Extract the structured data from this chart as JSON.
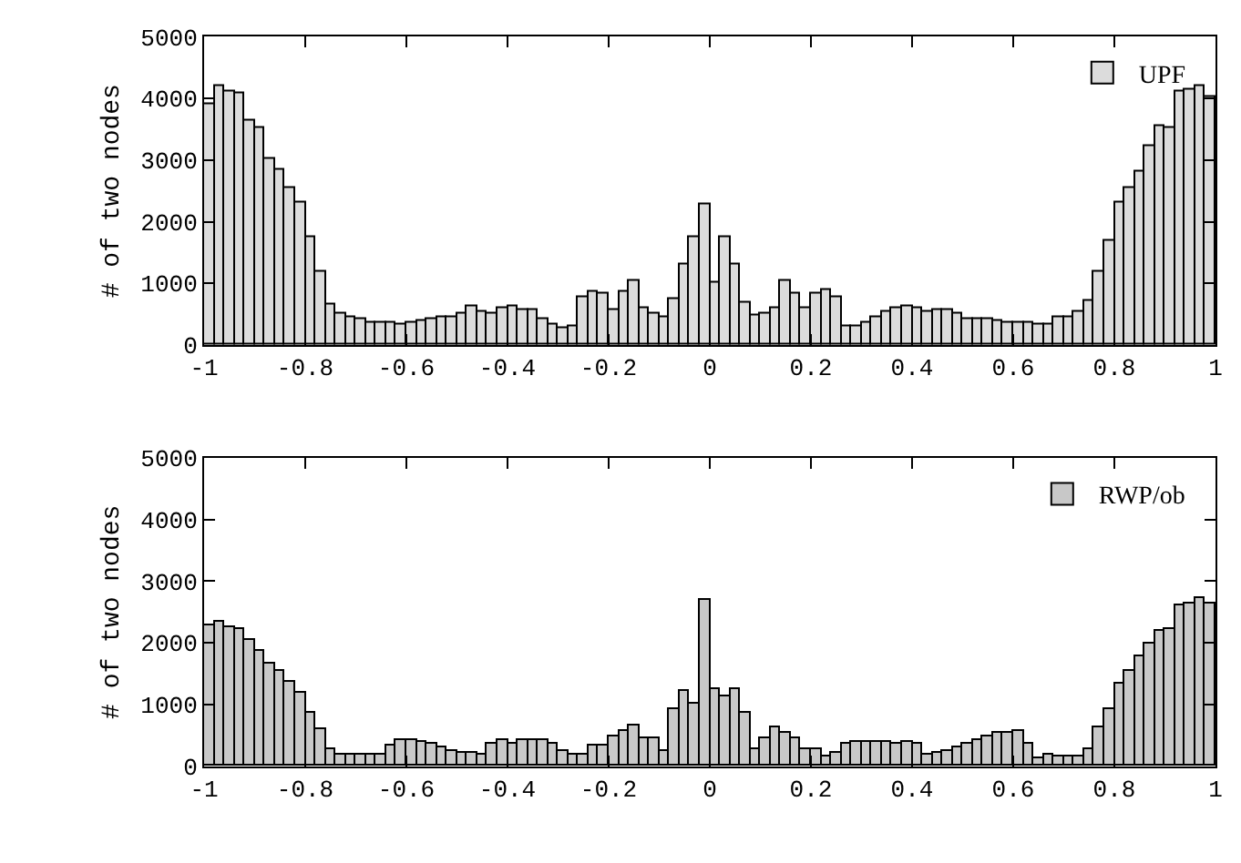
{
  "chart_data": [
    {
      "type": "histogram",
      "ylabel": "# of two nodes",
      "legend": "top right",
      "bins": [
        -1,
        -0.98,
        -0.96,
        -0.94,
        -0.92,
        -0.9,
        -0.88,
        -0.86,
        -0.84,
        -0.82,
        -0.8,
        -0.78,
        -0.76,
        -0.74,
        -0.72,
        -0.7,
        -0.68,
        -0.66,
        -0.64,
        -0.62,
        -0.6,
        -0.58,
        -0.56,
        -0.54,
        -0.52,
        -0.5,
        -0.48,
        -0.46,
        -0.44,
        -0.42,
        -0.4,
        -0.38,
        -0.36,
        -0.34,
        -0.32,
        -0.3,
        -0.28,
        -0.26,
        -0.24,
        -0.22,
        -0.2,
        -0.18,
        -0.16,
        -0.14,
        -0.12,
        -0.1,
        -0.08,
        -0.06,
        -0.04,
        -0.02,
        0,
        0.02,
        0.04,
        0.06,
        0.08,
        0.1,
        0.12,
        0.14,
        0.16,
        0.18,
        0.2,
        0.22,
        0.24,
        0.26,
        0.28,
        0.3,
        0.32,
        0.34,
        0.36,
        0.38,
        0.4,
        0.42,
        0.44,
        0.46,
        0.48,
        0.5,
        0.52,
        0.54,
        0.56,
        0.58,
        0.6,
        0.62,
        0.64,
        0.66,
        0.68,
        0.7,
        0.72,
        0.74,
        0.76,
        0.78,
        0.8,
        0.82,
        0.84,
        0.86,
        0.88,
        0.9,
        0.92,
        0.94,
        0.96,
        0.98,
        1
      ],
      "series": [
        {
          "name": "UPF",
          "color": "#dcdcdc",
          "values": [
            3900,
            4200,
            4120,
            4090,
            3640,
            3530,
            3030,
            2850,
            2560,
            2320,
            1750,
            1200,
            650,
            520,
            440,
            420,
            350,
            350,
            350,
            330,
            370,
            400,
            430,
            440,
            460,
            500,
            630,
            550,
            500,
            610,
            630,
            570,
            570,
            420,
            320,
            280,
            310,
            790,
            860,
            830,
            580,
            860,
            1030,
            610,
            520,
            460,
            740,
            1320,
            1750,
            2280,
            1010,
            1750,
            1320,
            680,
            480,
            520,
            590,
            1030,
            830,
            590,
            840,
            890,
            770,
            300,
            300,
            360,
            440,
            540,
            590,
            640,
            610,
            550,
            560,
            560,
            520,
            420,
            420,
            410,
            390,
            370,
            370,
            350,
            340,
            340,
            440,
            440,
            540,
            720,
            1200,
            1680,
            2310,
            2560,
            2820,
            3240,
            3560,
            3510,
            4110,
            4130,
            4200,
            4040
          ]
        }
      ],
      "xlim": [
        -1,
        1
      ],
      "xticks": [
        -1,
        -0.8,
        -0.6,
        -0.4,
        -0.2,
        0,
        0.2,
        0.4,
        0.6,
        0.8,
        1
      ],
      "ylim": [
        0,
        5000
      ],
      "yticks": [
        0,
        1000,
        2000,
        3000,
        4000,
        5000
      ]
    },
    {
      "type": "histogram",
      "ylabel": "# of two nodes",
      "legend": "top right",
      "bins": [
        -1,
        -0.98,
        -0.96,
        -0.94,
        -0.92,
        -0.9,
        -0.88,
        -0.86,
        -0.84,
        -0.82,
        -0.8,
        -0.78,
        -0.76,
        -0.74,
        -0.72,
        -0.7,
        -0.68,
        -0.66,
        -0.64,
        -0.62,
        -0.6,
        -0.58,
        -0.56,
        -0.54,
        -0.52,
        -0.5,
        -0.48,
        -0.46,
        -0.44,
        -0.42,
        -0.4,
        -0.38,
        -0.36,
        -0.34,
        -0.32,
        -0.3,
        -0.28,
        -0.26,
        -0.24,
        -0.22,
        -0.2,
        -0.18,
        -0.16,
        -0.14,
        -0.12,
        -0.1,
        -0.08,
        -0.06,
        -0.04,
        -0.02,
        0,
        0.02,
        0.04,
        0.06,
        0.08,
        0.1,
        0.12,
        0.14,
        0.16,
        0.18,
        0.2,
        0.22,
        0.24,
        0.26,
        0.28,
        0.3,
        0.32,
        0.34,
        0.36,
        0.38,
        0.4,
        0.42,
        0.44,
        0.46,
        0.48,
        0.5,
        0.52,
        0.54,
        0.56,
        0.58,
        0.6,
        0.62,
        0.64,
        0.66,
        0.68,
        0.7,
        0.72,
        0.74,
        0.76,
        0.78,
        0.8,
        0.82,
        0.84,
        0.86,
        0.88,
        0.9,
        0.92,
        0.94,
        0.96,
        0.98,
        1
      ],
      "series": [
        {
          "name": "RWP/ob",
          "color": "#c8c8c8",
          "values": [
            2270,
            2340,
            2250,
            2230,
            2040,
            1880,
            1670,
            1560,
            1360,
            1200,
            880,
            600,
            290,
            200,
            180,
            180,
            180,
            200,
            320,
            410,
            420,
            390,
            350,
            310,
            250,
            230,
            230,
            200,
            360,
            420,
            350,
            420,
            410,
            430,
            370,
            260,
            200,
            200,
            320,
            320,
            490,
            570,
            670,
            450,
            440,
            250,
            930,
            1220,
            1020,
            2710,
            1250,
            1120,
            1240,
            870,
            290,
            440,
            620,
            550,
            450,
            290,
            290,
            160,
            220,
            360,
            400,
            400,
            400,
            400,
            350,
            380,
            350,
            200,
            220,
            240,
            310,
            360,
            420,
            490,
            530,
            550,
            580,
            350,
            130,
            180,
            160,
            160,
            160,
            290,
            640,
            930,
            1350,
            1560,
            1780,
            2000,
            2200,
            2220,
            2600,
            2640,
            2730,
            2650
          ]
        }
      ],
      "xlim": [
        -1,
        1
      ],
      "xticks": [
        -1,
        -0.8,
        -0.6,
        -0.4,
        -0.2,
        0,
        0.2,
        0.4,
        0.6,
        0.8,
        1
      ],
      "ylim": [
        0,
        5000
      ],
      "yticks": [
        0,
        1000,
        2000,
        3000,
        4000,
        5000
      ]
    }
  ]
}
